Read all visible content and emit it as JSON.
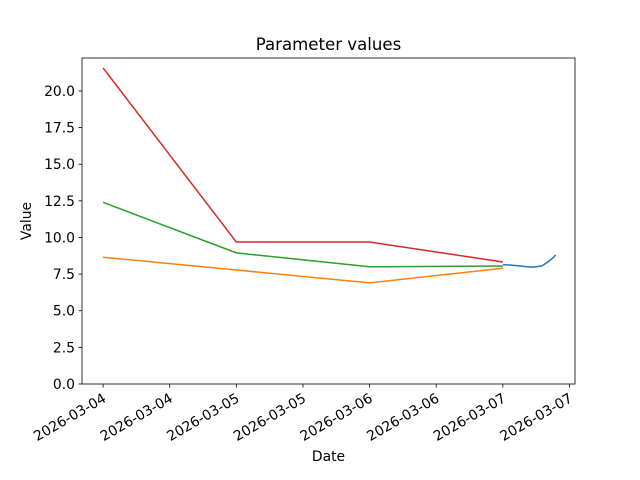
{
  "chart_data": {
    "type": "line",
    "title": "Parameter values",
    "xlabel": "Date",
    "ylabel": "Value",
    "grid": false,
    "legend": false,
    "x_axis": {
      "tick_labels": [
        "2026-03-04",
        "2026-03-04",
        "2026-03-05",
        "2026-03-05",
        "2026-03-06",
        "2026-03-06",
        "2026-03-07",
        "2026-03-07"
      ],
      "tick_hours": [
        0,
        12,
        24,
        36,
        48,
        60,
        72,
        84
      ],
      "lim_hours": [
        -3.8,
        85.0
      ],
      "label_rotation_deg": 30
    },
    "y_axis": {
      "tick_labels": [
        "0.0",
        "2.5",
        "5.0",
        "7.5",
        "10.0",
        "12.5",
        "15.0",
        "17.5",
        "20.0"
      ],
      "ticks": [
        0,
        2.5,
        5,
        7.5,
        10,
        12.5,
        15,
        17.5,
        20
      ],
      "lim": [
        0,
        22.25
      ]
    },
    "series": [
      {
        "name": "blue-series",
        "color": "#1f77b4",
        "points": [
          [
            72,
            8.15
          ],
          [
            74,
            8.1
          ],
          [
            76,
            8.02
          ],
          [
            77.5,
            7.98
          ],
          [
            79,
            8.05
          ],
          [
            80,
            8.3
          ],
          [
            81,
            8.6
          ],
          [
            81.5,
            8.8
          ]
        ]
      },
      {
        "name": "orange-series",
        "color": "#ff7f0e",
        "points": [
          [
            0,
            8.65
          ],
          [
            24,
            7.78
          ],
          [
            48,
            6.9
          ],
          [
            72,
            7.9
          ]
        ]
      },
      {
        "name": "green-series",
        "color": "#2ca02c",
        "points": [
          [
            0,
            12.4
          ],
          [
            24,
            8.95
          ],
          [
            48,
            8.0
          ],
          [
            72,
            8.05
          ]
        ]
      },
      {
        "name": "red-series",
        "color": "#d62728",
        "points": [
          [
            0,
            21.57
          ],
          [
            24,
            9.69
          ],
          [
            48,
            9.69
          ],
          [
            72,
            8.33
          ]
        ]
      }
    ]
  }
}
